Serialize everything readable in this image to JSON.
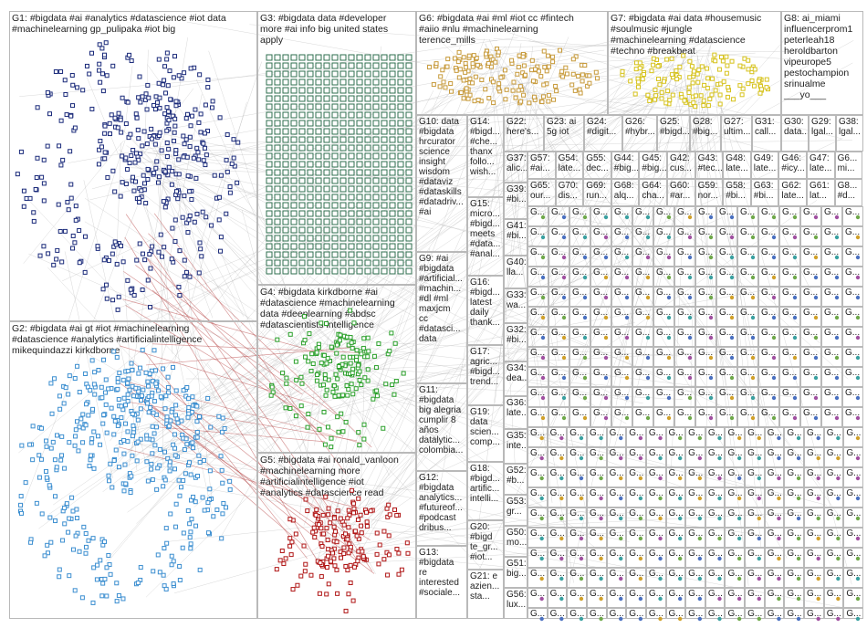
{
  "colors": {
    "G1": "#1a2a7a",
    "G2": "#3b8ed0",
    "G3": "#2f6f4f",
    "G4": "#2aa02a",
    "G5": "#b01616",
    "G6": "#c79a3a",
    "G7": "#d6c21a",
    "G8": "#7a7a7a",
    "edge": "#a8a8a8",
    "edgeRed": "#b03030"
  },
  "groups": {
    "G1": "G1: #bigdata #ai #analytics #datascience #iot data\n#machinelearning gp_pulipaka #iot big",
    "G2": "G2: #bigdata #ai gt #iot #machinelearning\n#datascience #analytics #artificialintelligence\nmikequindazzi kirkdborne",
    "G3": "G3: #bigdata data #developer\nmore #ai info big united states\napply",
    "G4": "G4: #bigdata kirkdborne #ai\n#datascience #machinelearning\ndata #deeplearning #abdsc\n#datascientists intelligence",
    "G5": "G5: #bigdata #ai ronald_vanloon\n#machinelearning more\n#artificialintelligence #iot\n#analytics #datascience read",
    "G6": "G6: #bigdata #ai #ml #iot cc #fintech\n#aiio #nlu #machinelearning\nterence_mills",
    "G7": "G7: #bigdata #ai data #housemusic\n#soulmusic #jungle\n#machinelearning #datascience\n#techno #breakbeat",
    "G8": "G8: ai_miami\ninfluencerprom1\npeterleah18\nheroldbarton\nvipeurope5\npestochampion\nsrinualme\n___yo___",
    "G9": "G9: #ai\n#bigdata\n#artificial...\n#machin...\n#dl #ml\nmaxjcm\ncc\n#datasci...\ndata",
    "G10": "G10: data\n#bigdata\nhrcurator\nscience\ninsight\nwisdom\n#dataviz\n#dataskills\n#datadriv...\n#ai",
    "G11": "G11:\n#bigdata\nbig alegria\ncumplir 8\naños\ndatalytic...\ncolombia...",
    "G12": "G12:\n#bigdata\nanalytics...\n#futureof...\n#podcast\ndribus...",
    "G13": "G13:\n#bigdata\nre\ninterested\n#sociale...",
    "G14": "G14:\n#bigd...\n#che...\nthanx\nfollo...\nwish...",
    "G15": "G15:\nmicro...\n#bigd...\nmeets\n#data...\n#anal...",
    "G16": "G16:\n#bigd...\nlatest\ndaily\nthank...",
    "G17": "G17:\nagric...\n#bigd...\ntrend...",
    "G18": "G18:\n#bigd...\nartific...\nintelli...",
    "G19": "G19:\ndata\nscien...\ncomp...",
    "G20": "G20:\n#bigd\nte_gr...\n#iot...",
    "G21": "G21: e\nazien...\nsta...",
    "G22": "G22:\nhere's...",
    "G23": "G23: ai\n5g iot",
    "G24": "G24:\n#digit...",
    "G26": "G26:\n#hybr...",
    "G25": "G25:\n#bigd...",
    "G28": "G28:\n#big...",
    "G27": "G27:\nultim...",
    "G31": "G31:\ncall...",
    "G30": "G30:\ndata...",
    "G29": "G29:\nlgal...",
    "G38": "G38:\nlgal...",
    "G37": "G37:\nalic...",
    "G57": "G57:\n#ai...",
    "G54": "G54:\nlate...",
    "G55": "G55:\ndec...",
    "G44": "G44:\n#big...",
    "G45": "G45:\n#big...",
    "G42": "G42:\ncus...",
    "G43": "G43:\n#tec...",
    "G48": "G48:\nlate...",
    "G49": "G49:\nlate...",
    "G46": "G46:\n#icy...",
    "G47": "G47:\nlate...",
    "G6x": "G6...\nmi...",
    "G39": "G39:\n#bi...",
    "G65": "G65:\nour...",
    "G70": "G70:\ndis...",
    "G69": "G69:\nrun...",
    "G68": "G68:\nalq...",
    "G64": "G64:\ncha...",
    "G60": "G60:\n#ar...",
    "G59": "G59:\nnor...",
    "G58": "G58:\n#bi...",
    "G63": "G63:\n#bi...",
    "G62": "G62:\nlate...",
    "G61": "G61:\nlat...",
    "G8x": "G8...\n#d...",
    "G41": "G41:\n#bi...",
    "G40": "G40:\nlla...",
    "G33": "G33:\nwa...",
    "G32": "G32:\n#bi...",
    "G34": "G34:\ndea...",
    "G36": "G36:\nlate...",
    "G35": "G35:\ninte...",
    "G52": "G52:\n#b...",
    "G53": "G53:\ngr...",
    "G50": "G50:\nmo...",
    "G51": "G51:\nbig...",
    "G56": "G56:\nlux...",
    "Gsmall": "G..."
  }
}
